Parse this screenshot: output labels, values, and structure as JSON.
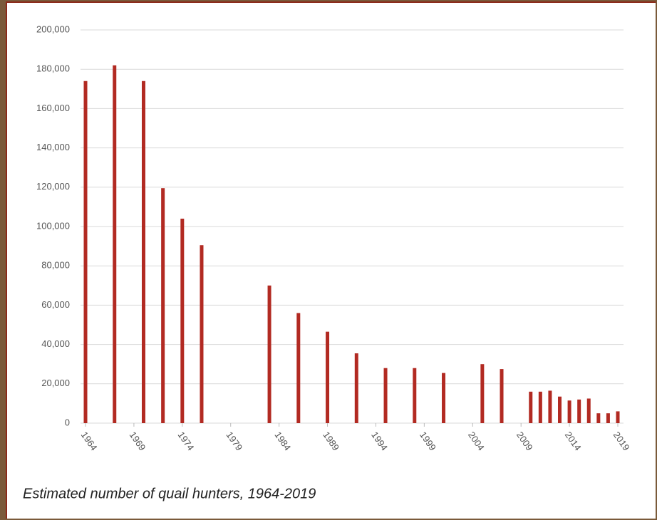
{
  "chart_data": {
    "type": "bar",
    "caption": "Estimated number of quail hunters, 1964-2019",
    "x": [
      1964,
      1967,
      1970,
      1972,
      1974,
      1976,
      1983,
      1986,
      1989,
      1992,
      1995,
      1998,
      2001,
      2005,
      2007,
      2010,
      2011,
      2012,
      2013,
      2014,
      2015,
      2016,
      2017,
      2018,
      2019
    ],
    "values": [
      174000,
      182000,
      174000,
      119500,
      104000,
      90500,
      70000,
      56000,
      46500,
      35500,
      28000,
      28000,
      25500,
      30000,
      27500,
      16000,
      16000,
      16500,
      13500,
      11500,
      12000,
      12500,
      5000,
      5000,
      6000
    ],
    "color": "#b22a22",
    "xlim": [
      1964,
      2019
    ],
    "xticks": [
      1964,
      1969,
      1974,
      1979,
      1984,
      1989,
      1994,
      1999,
      2004,
      2009,
      2014,
      2019
    ],
    "ylim": [
      0,
      200000
    ],
    "yticks": [
      0,
      {
        "value": 20000,
        "label": "20,000"
      },
      {
        "value": 40000,
        "label": "40,000"
      },
      {
        "value": 60000,
        "label": "60,000"
      },
      {
        "value": 80000,
        "label": "80,000"
      },
      {
        "value": 100000,
        "label": "100,000"
      },
      {
        "value": 120000,
        "label": "120,000"
      },
      {
        "value": 140000,
        "label": "140,000"
      },
      {
        "value": 160000,
        "label": "160,000"
      },
      {
        "value": 180000,
        "label": "180,000"
      },
      {
        "value": 200000,
        "label": "200,000"
      }
    ],
    "grid": true
  }
}
